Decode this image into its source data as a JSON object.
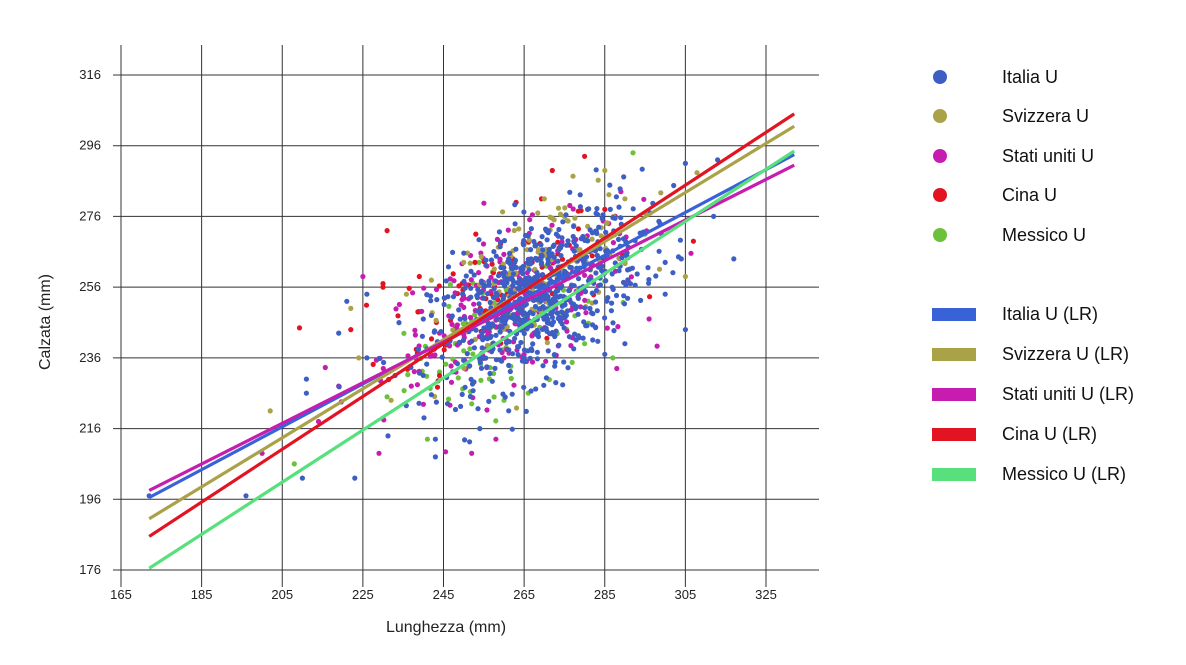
{
  "chart_data": {
    "type": "scatter",
    "xlabel": "Lunghezza (mm)",
    "ylabel": "Calzata (mm)",
    "xlim": [
      165,
      333
    ],
    "ylim": [
      176,
      316
    ],
    "xticks": [
      165,
      185,
      205,
      225,
      245,
      265,
      285,
      305,
      325
    ],
    "yticks": [
      176,
      196,
      216,
      236,
      256,
      276,
      296,
      316
    ],
    "grid": true,
    "legend_position": "right",
    "series": [
      {
        "name": "Italia U",
        "color": "#3d5fc4",
        "center": [
          268,
          253
        ],
        "spread": [
          13,
          13
        ],
        "count": 700,
        "points": [
          [
            172,
            197
          ],
          [
            196,
            197
          ],
          [
            210,
            202
          ],
          [
            223,
            202
          ],
          [
            211,
            226
          ],
          [
            211,
            230
          ],
          [
            243,
            213
          ],
          [
            243,
            208
          ],
          [
            254,
            216
          ],
          [
            305,
            291
          ],
          [
            313,
            292
          ],
          [
            312,
            276
          ],
          [
            317,
            264
          ],
          [
            304,
            264
          ],
          [
            305,
            244
          ],
          [
            290,
            240
          ],
          [
            300,
            254
          ],
          [
            285,
            237
          ],
          [
            219,
            243
          ],
          [
            226,
            254
          ],
          [
            221,
            252
          ],
          [
            240,
            247
          ],
          [
            242,
            248
          ],
          [
            248,
            243
          ],
          [
            233,
            231
          ],
          [
            226,
            236
          ],
          [
            260,
            259
          ],
          [
            300,
            263
          ]
        ]
      },
      {
        "name": "Svizzera U",
        "color": "#a9a248",
        "center": [
          270,
          262
        ],
        "spread": [
          12,
          11
        ],
        "count": 120,
        "points": [
          [
            202,
            221
          ],
          [
            232,
            224
          ],
          [
            224,
            236
          ],
          [
            242,
            258
          ],
          [
            250,
            263
          ],
          [
            265,
            268
          ],
          [
            270,
            281
          ],
          [
            285,
            289
          ],
          [
            290,
            281
          ],
          [
            295,
            277
          ],
          [
            305,
            259
          ],
          [
            280,
            270
          ],
          [
            275,
            276
          ],
          [
            260,
            259
          ],
          [
            255,
            257
          ],
          [
            222,
            250
          ]
        ]
      },
      {
        "name": "Stati uniti U",
        "color": "#c71cb0",
        "center": [
          262,
          250
        ],
        "spread": [
          16,
          12
        ],
        "count": 240,
        "points": [
          [
            200,
            209
          ],
          [
            214,
            218
          ],
          [
            219,
            228
          ],
          [
            225,
            259
          ],
          [
            229,
            209
          ],
          [
            237,
            228
          ],
          [
            252,
            209
          ],
          [
            258,
            213
          ],
          [
            289,
            283
          ],
          [
            285,
            260
          ],
          [
            278,
            260
          ],
          [
            265,
            237
          ],
          [
            244,
            243
          ],
          [
            296,
            247
          ],
          [
            288,
            233
          ],
          [
            260,
            236
          ]
        ]
      },
      {
        "name": "Cina U",
        "color": "#e21421",
        "center": [
          258,
          255
        ],
        "spread": [
          14,
          11
        ],
        "count": 100,
        "points": [
          [
            231,
            272
          ],
          [
            253,
            271
          ],
          [
            263,
            280
          ],
          [
            272,
            289
          ],
          [
            280,
            293
          ],
          [
            285,
            278
          ],
          [
            290,
            263
          ],
          [
            307,
            269
          ],
          [
            239,
            259
          ],
          [
            230,
            257
          ],
          [
            222,
            244
          ],
          [
            244,
            231
          ],
          [
            230,
            256
          ],
          [
            267,
            263
          ]
        ]
      },
      {
        "name": "Messico U",
        "color": "#6bc23a",
        "center": [
          262,
          244
        ],
        "spread": [
          13,
          11
        ],
        "count": 100,
        "points": [
          [
            208,
            206
          ],
          [
            231,
            225
          ],
          [
            241,
            213
          ],
          [
            252,
            223
          ],
          [
            260,
            224
          ],
          [
            266,
            226
          ],
          [
            280,
            240
          ],
          [
            292,
            294
          ],
          [
            295,
            271
          ],
          [
            285,
            270
          ],
          [
            270,
            247
          ],
          [
            250,
            238
          ],
          [
            244,
            232
          ],
          [
            287,
            236
          ]
        ]
      }
    ],
    "regression": [
      {
        "name": "Italia U (LR)",
        "color": "#3a62d7",
        "x": [
          172,
          332
        ],
        "y": [
          196.5,
          293.5
        ]
      },
      {
        "name": "Svizzera U (LR)",
        "color": "#a9a248",
        "x": [
          172,
          332
        ],
        "y": [
          190.5,
          301.5
        ]
      },
      {
        "name": "Stati uniti U (LR)",
        "color": "#c71cb0",
        "x": [
          172,
          332
        ],
        "y": [
          198.5,
          290.5
        ]
      },
      {
        "name": "Cina U (LR)",
        "color": "#e21421",
        "x": [
          172,
          332
        ],
        "y": [
          185.5,
          305.0
        ]
      },
      {
        "name": "Messico U (LR)",
        "color": "#58e07d",
        "x": [
          172,
          332
        ],
        "y": [
          176.5,
          294.5
        ]
      }
    ],
    "legend_items": {
      "points": [
        "Italia U",
        "Svizzera U",
        "Stati uniti U",
        "Cina U",
        "Messico U"
      ],
      "lines": [
        "Italia U (LR)",
        "Svizzera U (LR)",
        "Stati uniti U (LR)",
        "Cina U (LR)",
        "Messico U (LR)"
      ]
    }
  }
}
